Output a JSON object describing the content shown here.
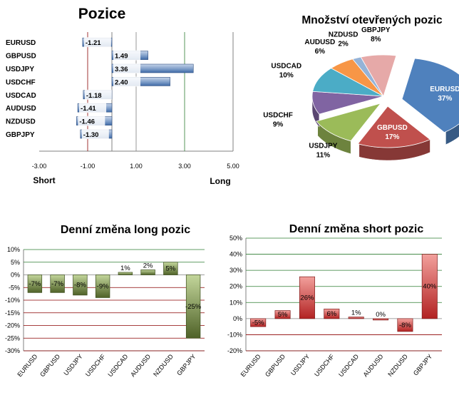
{
  "charts": {
    "positions": {
      "title": "Pozice",
      "type": "bar",
      "categories": [
        "EURUSD",
        "GBPUSD",
        "USDJPY",
        "USDCHF",
        "USDCAD",
        "AUDUSD",
        "NZDUSD",
        "GBPJPY"
      ],
      "values": [
        -1.21,
        1.49,
        3.36,
        2.4,
        -1.18,
        -1.41,
        -1.46,
        -1.3
      ],
      "value_labels": [
        "-1.21",
        "1.49",
        "3.36",
        "2.40",
        "-1.18",
        "-1.41",
        "-1.46",
        "-1.30"
      ],
      "xticks": [
        "-3.00",
        "-1.00",
        "1.00",
        "3.00",
        "5.00"
      ],
      "xlim": [
        -3,
        5
      ],
      "left_label": "Short",
      "right_label": "Long"
    },
    "open_positions": {
      "title": "Množství otevřených pozic",
      "type": "pie",
      "slices": [
        {
          "name": "EURUSD",
          "value": 37,
          "label": "37%",
          "color": "#4f81bd"
        },
        {
          "name": "GBPUSD",
          "value": 17,
          "label": "17%",
          "color": "#c0504d"
        },
        {
          "name": "USDJPY",
          "value": 11,
          "label": "11%",
          "color": "#9bbb59"
        },
        {
          "name": "USDCHF",
          "value": 9,
          "label": "9%",
          "color": "#8064a2"
        },
        {
          "name": "USDCAD",
          "value": 10,
          "label": "10%",
          "color": "#4bacc6"
        },
        {
          "name": "AUDUSD",
          "value": 6,
          "label": "6%",
          "color": "#f79646"
        },
        {
          "name": "NZDUSD",
          "value": 2,
          "label": "2%",
          "color": "#95b3d7"
        },
        {
          "name": "GBPJPY",
          "value": 8,
          "label": "8%",
          "color": "#e6a9a8"
        }
      ]
    },
    "daily_long": {
      "title": "Denní změna long pozic",
      "type": "bar",
      "categories": [
        "EURUSD",
        "GBPUSD",
        "USDJPY",
        "USDCHF",
        "USDCAD",
        "AUDUSD",
        "NZDUSD",
        "GBPJPY"
      ],
      "values": [
        -7,
        -7,
        -8,
        -9,
        1,
        2,
        5,
        -25
      ],
      "value_labels": [
        "-7%",
        "-7%",
        "-8%",
        "-9%",
        "1%",
        "2%",
        "5%",
        "-25%"
      ],
      "yticks": [
        "10%",
        "5%",
        "0%",
        "-5%",
        "-10%",
        "-15%",
        "-20%",
        "-25%",
        "-30%"
      ],
      "ylim": [
        -30,
        10
      ],
      "color": "#77933c"
    },
    "daily_short": {
      "title": "Denní změna short pozic",
      "type": "bar",
      "categories": [
        "EURUSD",
        "GBPUSD",
        "USDJPY",
        "USDCHF",
        "USDCAD",
        "AUDUSD",
        "NZDUSD",
        "GBPJPY"
      ],
      "values": [
        -5,
        5,
        26,
        6,
        1,
        0,
        -8,
        40
      ],
      "value_labels": [
        "-5%",
        "5%",
        "26%",
        "6%",
        "1%",
        "0%",
        "-8%",
        "40%"
      ],
      "yticks": [
        "50%",
        "40%",
        "30%",
        "20%",
        "10%",
        "0%",
        "-10%",
        "-20%"
      ],
      "ylim": [
        -20,
        50
      ],
      "color": "#c0392b"
    }
  },
  "chart_data": [
    {
      "type": "bar",
      "title": "Pozice",
      "categories": [
        "EURUSD",
        "GBPUSD",
        "USDJPY",
        "USDCHF",
        "USDCAD",
        "AUDUSD",
        "NZDUSD",
        "GBPJPY"
      ],
      "values": [
        -1.21,
        1.49,
        3.36,
        2.4,
        -1.18,
        -1.41,
        -1.46,
        -1.3
      ],
      "xlim": [
        -3,
        5
      ]
    },
    {
      "type": "pie",
      "title": "Množství otevřených pozic",
      "categories": [
        "EURUSD",
        "GBPUSD",
        "USDJPY",
        "USDCHF",
        "USDCAD",
        "AUDUSD",
        "NZDUSD",
        "GBPJPY"
      ],
      "values": [
        37,
        17,
        11,
        9,
        10,
        6,
        2,
        8
      ]
    },
    {
      "type": "bar",
      "title": "Denní změna long pozic",
      "categories": [
        "EURUSD",
        "GBPUSD",
        "USDJPY",
        "USDCHF",
        "USDCAD",
        "AUDUSD",
        "NZDUSD",
        "GBPJPY"
      ],
      "values": [
        -7,
        -7,
        -8,
        -9,
        1,
        2,
        5,
        -25
      ],
      "ylim": [
        -30,
        10
      ]
    },
    {
      "type": "bar",
      "title": "Denní změna short pozic",
      "categories": [
        "EURUSD",
        "GBPUSD",
        "USDJPY",
        "USDCHF",
        "USDCAD",
        "AUDUSD",
        "NZDUSD",
        "GBPJPY"
      ],
      "values": [
        -5,
        5,
        26,
        6,
        1,
        0,
        -8,
        40
      ],
      "ylim": [
        -20,
        50
      ]
    }
  ]
}
